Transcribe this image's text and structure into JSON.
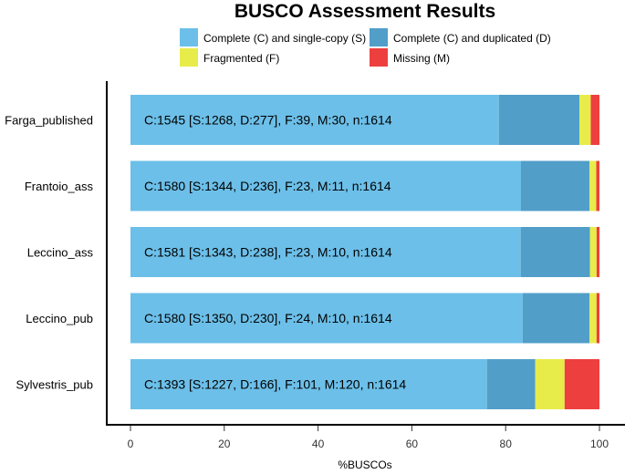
{
  "chart_data": {
    "type": "bar",
    "orientation": "horizontal",
    "stacked": true,
    "title": "BUSCO Assessment Results",
    "xlabel": "%BUSCOs",
    "xlim": [
      0,
      100
    ],
    "xticks": [
      0,
      20,
      40,
      60,
      80,
      100
    ],
    "legend_position": "top",
    "categories": [
      "Farga_published",
      "Frantoio_ass",
      "Leccino_ass",
      "Leccino_pub",
      "Sylvestris_pub"
    ],
    "bar_labels": [
      "C:1545 [S:1268, D:277], F:39, M:30, n:1614",
      "C:1580 [S:1344, D:236], F:23, M:11, n:1614",
      "C:1581 [S:1343, D:238], F:23, M:10, n:1614",
      "C:1580 [S:1350, D:230], F:24, M:10, n:1614",
      "C:1393 [S:1227, D:166], F:101, M:120, n:1614"
    ],
    "series": [
      {
        "name": "Complete (C) and single-copy (S)",
        "color": "#6cbfe8",
        "values": [
          78.56,
          83.27,
          83.21,
          83.64,
          76.02
        ]
      },
      {
        "name": "Complete (C) and duplicated (D)",
        "color": "#519ec9",
        "values": [
          17.16,
          14.62,
          14.75,
          14.25,
          10.29
        ]
      },
      {
        "name": "Fragmented (F)",
        "color": "#e8ec4a",
        "values": [
          2.42,
          1.43,
          1.43,
          1.49,
          6.26
        ]
      },
      {
        "name": "Missing (M)",
        "color": "#ee3f3f",
        "values": [
          1.86,
          0.68,
          0.62,
          0.62,
          7.43
        ]
      }
    ]
  }
}
